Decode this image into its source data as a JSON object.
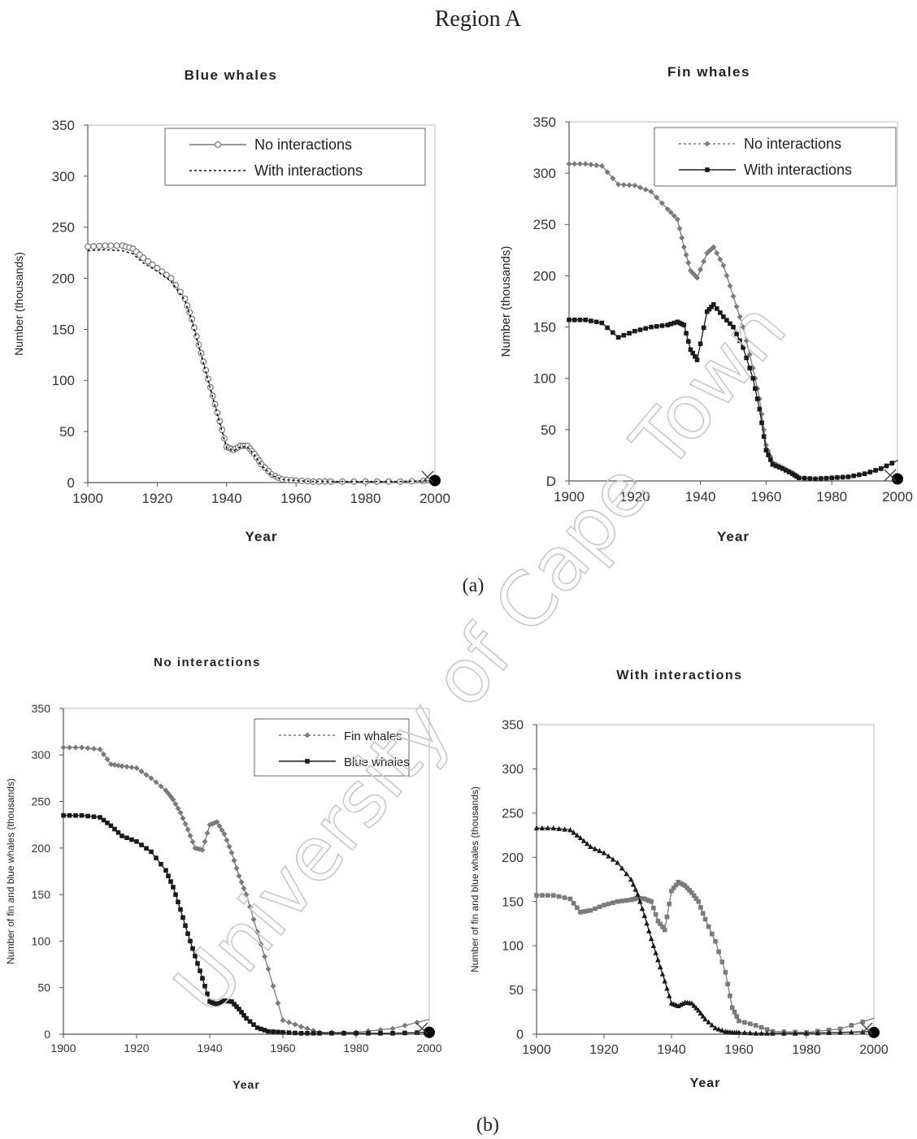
{
  "page": {
    "region_title": "Region A",
    "panel_a_label": "(a)",
    "panel_b_label": "(b)",
    "watermark": "University of Cape Town"
  },
  "colors": {
    "blue_whales": "#1a1a1a",
    "fin_whales": "#7a7a7a",
    "no_interactions": "#777777",
    "with_interactions": "#111111",
    "axis": "#555555",
    "watermark": "#c8c8c8"
  },
  "chart_data": [
    {
      "id": "chart-a1",
      "type": "line",
      "title": "Blue whales",
      "xlabel": "Year",
      "ylabel": "Number (thousands)",
      "xlim": [
        1900,
        2000
      ],
      "ylim": [
        0,
        350
      ],
      "xticks": [
        "1900",
        "1920",
        "1940",
        "1960",
        "1980",
        "2000"
      ],
      "yticks": [
        "0",
        "50",
        "100",
        "150",
        "200",
        "250",
        "300",
        "350"
      ],
      "legend_position": "top-center",
      "x": [
        1900,
        1905,
        1910,
        1913,
        1916,
        1920,
        1924,
        1928,
        1930,
        1932,
        1934,
        1936,
        1938,
        1940,
        1942,
        1944,
        1946,
        1948,
        1950,
        1953,
        1956,
        1960,
        1965,
        1970,
        1980,
        1990,
        2000
      ],
      "series": [
        {
          "name": "No interactions",
          "style": "open-circle",
          "values": [
            231,
            232,
            232,
            229,
            220,
            210,
            200,
            180,
            160,
            135,
            110,
            85,
            60,
            35,
            32,
            36,
            36,
            28,
            18,
            8,
            3,
            2,
            1,
            1,
            1,
            1,
            2
          ]
        },
        {
          "name": "With interactions",
          "style": "dashed",
          "values": [
            227,
            228,
            227,
            224,
            215,
            207,
            197,
            178,
            158,
            133,
            108,
            83,
            58,
            34,
            31,
            35,
            35,
            27,
            17,
            7,
            3,
            2,
            1,
            1,
            1,
            1,
            2
          ]
        }
      ]
    },
    {
      "id": "chart-a2",
      "type": "line",
      "title": "Fin whales",
      "xlabel": "Year",
      "ylabel": "Number (thousands)",
      "xlim": [
        1900,
        2000
      ],
      "ylim": [
        0,
        350
      ],
      "xticks": [
        "1900",
        "1920",
        "1940",
        "1960",
        "1980",
        "2000"
      ],
      "yticks": [
        "D",
        "50",
        "100",
        "150",
        "200",
        "250",
        "300",
        "350"
      ],
      "legend_position": "top-right",
      "x": [
        1900,
        1905,
        1910,
        1915,
        1920,
        1925,
        1930,
        1933,
        1935,
        1937,
        1939,
        1942,
        1944,
        1947,
        1950,
        1953,
        1956,
        1958,
        1960,
        1962,
        1965,
        1968,
        1970,
        1975,
        1980,
        1985,
        1990,
        1995,
        2000
      ],
      "series": [
        {
          "name": "No interactions",
          "style": "grey-diamond",
          "values": [
            309,
            309,
            307,
            289,
            288,
            282,
            265,
            255,
            228,
            205,
            198,
            222,
            228,
            210,
            180,
            150,
            110,
            80,
            35,
            18,
            13,
            8,
            3,
            2,
            3,
            4,
            7,
            12,
            20
          ]
        },
        {
          "name": "With interactions",
          "style": "black-square",
          "values": [
            157,
            157,
            154,
            140,
            146,
            150,
            152,
            155,
            152,
            128,
            118,
            165,
            172,
            160,
            150,
            130,
            100,
            70,
            30,
            16,
            12,
            7,
            3,
            2,
            3,
            4,
            7,
            12,
            20
          ]
        }
      ]
    },
    {
      "id": "chart-b1",
      "type": "line",
      "title": "No interactions",
      "xlabel": "Year",
      "ylabel": "Number of fin and blue whales (thousands)",
      "xlim": [
        1900,
        2000
      ],
      "ylim": [
        0,
        350
      ],
      "xticks": [
        "1900",
        "1920",
        "1940",
        "1960",
        "1980",
        "2000"
      ],
      "yticks": [
        "0",
        "50",
        "100",
        "150",
        "200",
        "250",
        "300",
        "350"
      ],
      "legend_position": "top-right",
      "x": [
        1900,
        1905,
        1910,
        1913,
        1916,
        1920,
        1924,
        1928,
        1930,
        1932,
        1934,
        1936,
        1938,
        1940,
        1942,
        1944,
        1946,
        1948,
        1950,
        1953,
        1956,
        1960,
        1965,
        1970,
        1980,
        1990,
        2000
      ],
      "series": [
        {
          "name": "Fin whales",
          "style": "grey-diamond",
          "values": [
            308,
            308,
            306,
            290,
            288,
            286,
            275,
            262,
            252,
            238,
            220,
            200,
            198,
            225,
            228,
            215,
            195,
            170,
            150,
            110,
            70,
            15,
            8,
            2,
            2,
            6,
            16
          ]
        },
        {
          "name": "Blue whales",
          "style": "black-square",
          "values": [
            235,
            235,
            233,
            224,
            213,
            207,
            196,
            176,
            158,
            134,
            108,
            84,
            60,
            35,
            32,
            36,
            35,
            27,
            17,
            7,
            3,
            2,
            1,
            1,
            1,
            1,
            2
          ]
        }
      ]
    },
    {
      "id": "chart-b2",
      "type": "line",
      "title": "With interactions",
      "xlabel": "Year",
      "ylabel": "Number of fin and blue whales (thousands)",
      "xlim": [
        1900,
        2000
      ],
      "ylim": [
        0,
        350
      ],
      "xticks": [
        "1900",
        "1920",
        "1940",
        "1960",
        "1980",
        "2000"
      ],
      "yticks": [
        "0",
        "50",
        "100",
        "150",
        "200",
        "250",
        "300",
        "350"
      ],
      "legend_position": "",
      "x": [
        1900,
        1905,
        1910,
        1913,
        1916,
        1920,
        1924,
        1928,
        1930,
        1932,
        1934,
        1936,
        1938,
        1940,
        1942,
        1944,
        1946,
        1948,
        1950,
        1953,
        1956,
        1958,
        1960,
        1965,
        1970,
        1980,
        1990,
        2000
      ],
      "series": [
        {
          "name": "Fin whales",
          "style": "grey-square",
          "values": [
            157,
            157,
            153,
            138,
            140,
            146,
            150,
            152,
            154,
            153,
            150,
            128,
            118,
            162,
            172,
            168,
            160,
            150,
            130,
            105,
            70,
            30,
            15,
            10,
            3,
            2,
            6,
            18
          ]
        },
        {
          "name": "Blue whales",
          "style": "black-triangle",
          "values": [
            233,
            233,
            231,
            222,
            212,
            205,
            194,
            175,
            158,
            134,
            108,
            84,
            60,
            35,
            32,
            36,
            35,
            27,
            17,
            7,
            3,
            2,
            2,
            1,
            1,
            1,
            2,
            3
          ]
        }
      ]
    }
  ]
}
